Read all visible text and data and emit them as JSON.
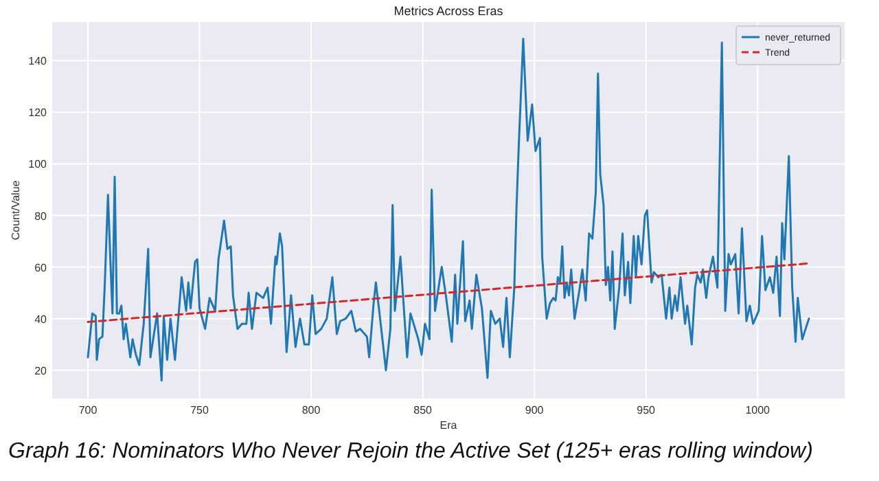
{
  "chart_data": {
    "type": "line",
    "title": "Metrics Across Eras",
    "xlabel": "Era",
    "ylabel": "Count/Value",
    "annotations": [
      "Graph 16: Nominators Who Never Rejoin the Active Set (125+ eras rolling window)"
    ],
    "xlim": [
      684,
      1039
    ],
    "xticks": [
      700,
      750,
      800,
      850,
      900,
      950,
      1000
    ],
    "ylim": [
      9,
      155
    ],
    "yticks": [
      20,
      40,
      60,
      80,
      100,
      120,
      140
    ],
    "grid": true,
    "legend": "top right",
    "marker": "none",
    "series": [
      {
        "name": "never_returned",
        "color": "#1f77b4",
        "line_style": "solid",
        "x": [
          700,
          702,
          703.5,
          704,
          705,
          706.5,
          707.5,
          709,
          710,
          711,
          712,
          713,
          714,
          715,
          716,
          717,
          719,
          720,
          721.5,
          723,
          725,
          727,
          728,
          731,
          733,
          734,
          735.5,
          737,
          739,
          742,
          744,
          745,
          746,
          748,
          749,
          750,
          752.5,
          754.5,
          757,
          758.5,
          761,
          762.5,
          764,
          765,
          767,
          769,
          771,
          772,
          773.5,
          775.5,
          778.5,
          780.5,
          782,
          784,
          784.5,
          786,
          787,
          789,
          791,
          793,
          795,
          797,
          799,
          800.5,
          802,
          804.5,
          807,
          809.5,
          811.5,
          813,
          815.5,
          818,
          820,
          822,
          825,
          826,
          828,
          829,
          830.5,
          833.5,
          835.5,
          836.5,
          837.5,
          840,
          843,
          844.5,
          848,
          849.5,
          851,
          853,
          854,
          855.5,
          858.5,
          860.5,
          863,
          864.5,
          865.5,
          868,
          869,
          871,
          872,
          874,
          876.5,
          879,
          880.5,
          882.5,
          884.5,
          886,
          887.5,
          889,
          891,
          892,
          893,
          895,
          897,
          899,
          900.5,
          902.5,
          903.5,
          905.5,
          907,
          908.5,
          909.5,
          910.5,
          911.5,
          912.5,
          913.5,
          914.5,
          915.5,
          916.5,
          918,
          920,
          921.5,
          923,
          924.5,
          926,
          927.5,
          928.5,
          929.5,
          931,
          932,
          933,
          934,
          935,
          936,
          938,
          939.5,
          940.5,
          942,
          943,
          944.5,
          945.5,
          946.5,
          948,
          949.5,
          950.5,
          952.5,
          953.5,
          955.5,
          957,
          959,
          960.5,
          961.5,
          963,
          964,
          965.5,
          967.5,
          968.5,
          970.5,
          972,
          973,
          974.5,
          975.5,
          977,
          978,
          980,
          982,
          984,
          985.5,
          987,
          988,
          990,
          991.5,
          993,
          995,
          996.5,
          998,
          1000.5,
          1002,
          1003.5,
          1005.5,
          1007,
          1008.5,
          1010,
          1011,
          1012,
          1014,
          1015.5,
          1017,
          1018,
          1020,
          1021.5,
          1023
        ],
        "values": [
          25,
          42,
          41,
          24,
          32,
          33,
          52,
          88,
          64,
          42,
          95,
          42,
          42,
          45,
          32,
          38,
          25,
          32,
          26,
          22,
          38,
          67,
          25,
          42,
          16,
          41,
          24,
          40,
          24,
          56,
          43,
          54,
          44,
          62,
          63,
          44,
          36,
          48,
          43,
          63,
          78,
          67,
          68,
          49,
          36,
          38,
          38,
          50,
          36,
          50,
          48,
          52,
          38,
          64,
          61,
          73,
          68,
          27,
          49,
          29,
          40,
          30,
          30,
          49,
          34,
          36,
          40,
          56,
          34,
          39,
          40,
          43,
          35,
          36,
          33,
          25,
          46,
          54,
          43,
          20,
          36,
          84,
          43,
          64,
          25,
          42,
          32,
          26,
          38,
          32,
          90,
          43,
          60,
          48,
          31,
          57,
          38,
          70,
          39,
          47,
          36,
          57,
          44,
          17,
          43,
          38,
          40,
          29,
          48,
          25,
          52,
          83,
          107,
          148.5,
          109,
          123,
          105,
          110,
          64,
          40,
          46,
          48,
          47,
          56,
          54,
          68,
          48,
          54,
          49,
          59,
          40,
          50,
          59,
          47,
          73,
          71,
          89,
          135,
          96,
          84,
          53,
          60,
          47,
          66,
          36,
          52,
          73,
          49,
          62,
          46,
          72,
          56,
          72,
          61,
          80,
          82,
          54,
          58,
          56,
          57,
          40,
          52,
          40,
          49,
          43,
          56,
          38,
          45,
          30,
          52,
          57,
          54,
          59,
          48,
          56,
          64,
          52,
          147,
          43,
          65,
          61,
          65,
          42,
          75,
          39,
          45,
          38,
          43,
          72,
          51,
          56,
          50,
          64,
          41,
          77,
          63,
          103,
          52,
          31,
          48,
          32,
          36,
          40
        ]
      },
      {
        "name": "Trend",
        "color": "#d62728",
        "line_style": "dashed",
        "x": [
          700,
          1023
        ],
        "values": [
          38.7,
          61.4
        ]
      }
    ]
  }
}
